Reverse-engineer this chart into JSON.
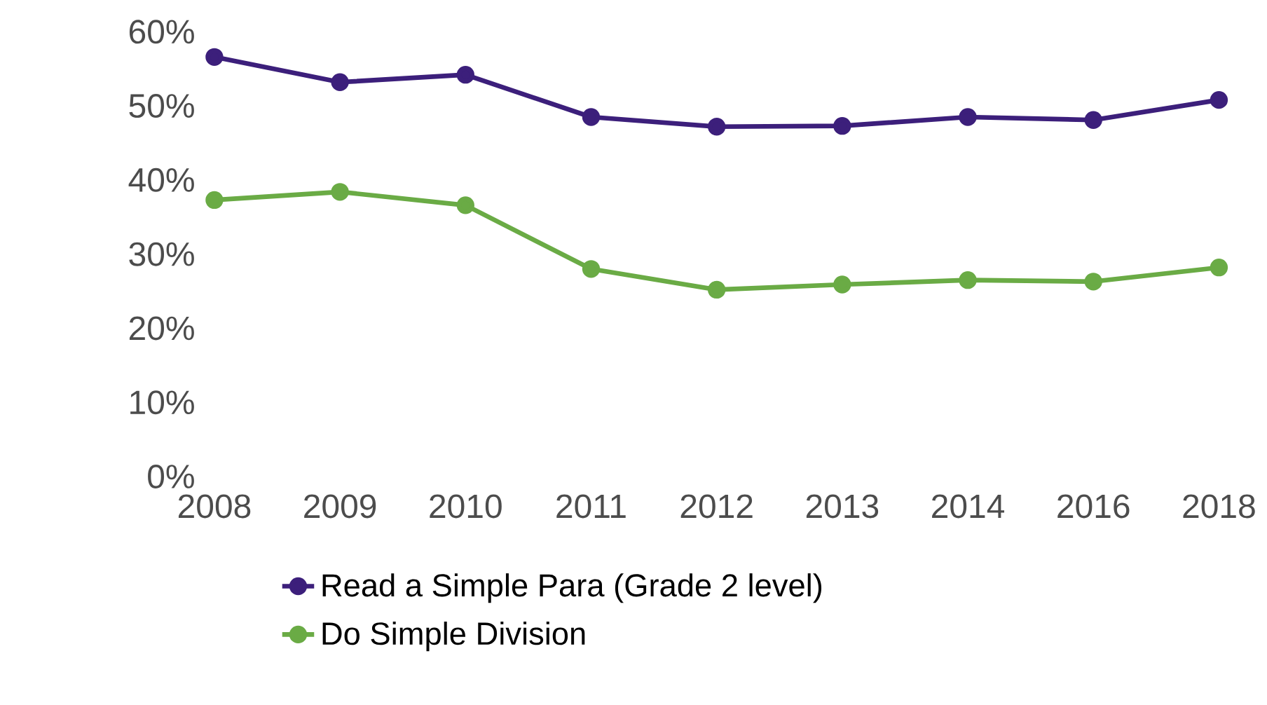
{
  "chart_data": {
    "type": "line",
    "categories": [
      "2008",
      "2009",
      "2010",
      "2011",
      "2012",
      "2013",
      "2014",
      "2016",
      "2018"
    ],
    "series": [
      {
        "name": "Read a Simple Para (Grade 2 level)",
        "color": "#3c1f7b",
        "values": [
          56.6,
          53.2,
          54.2,
          48.5,
          47.2,
          47.3,
          48.5,
          48.1,
          50.8
        ]
      },
      {
        "name": "Do Simple Division",
        "color": "#6aab45",
        "values": [
          37.3,
          38.4,
          36.6,
          28.0,
          25.2,
          25.9,
          26.5,
          26.3,
          28.2
        ]
      }
    ],
    "ylim": [
      0,
      60
    ],
    "yticks": [
      {
        "value": 0,
        "label": "0%"
      },
      {
        "value": 10,
        "label": "10%"
      },
      {
        "value": 20,
        "label": "20%"
      },
      {
        "value": 30,
        "label": "30%"
      },
      {
        "value": 40,
        "label": "40%"
      },
      {
        "value": 50,
        "label": "50%"
      },
      {
        "value": 60,
        "label": "60%"
      }
    ],
    "grid": false,
    "legend": "bottom",
    "marker": "circle",
    "line_style": "solid"
  }
}
